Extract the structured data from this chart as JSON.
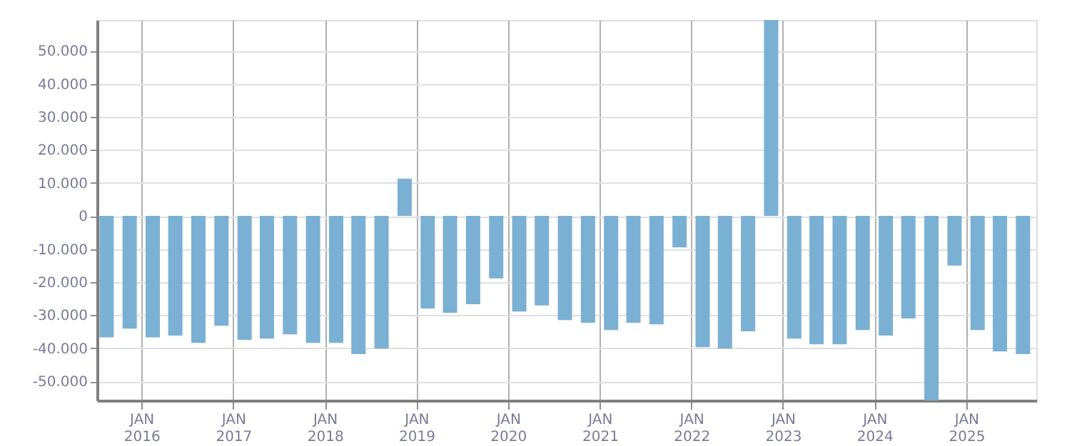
{
  "chart_data": {
    "type": "bar",
    "x": [
      "2015-08-15",
      "2015-11-15",
      "2016-02-15",
      "2016-05-15",
      "2016-08-15",
      "2016-11-15",
      "2017-02-15",
      "2017-05-15",
      "2017-08-15",
      "2017-11-15",
      "2018-02-15",
      "2018-05-15",
      "2018-08-15",
      "2018-11-15",
      "2019-02-15",
      "2019-05-15",
      "2019-08-15",
      "2019-11-15",
      "2020-02-15",
      "2020-05-15",
      "2020-08-15",
      "2020-11-15",
      "2021-02-15",
      "2021-05-15",
      "2021-08-15",
      "2021-11-15",
      "2022-02-15",
      "2022-05-15",
      "2022-08-15",
      "2022-11-15",
      "2023-02-15",
      "2023-05-15",
      "2023-08-15",
      "2023-11-15",
      "2024-02-15",
      "2024-05-15",
      "2024-08-15",
      "2024-11-15",
      "2025-02-15",
      "2025-05-15",
      "2025-08-15"
    ],
    "series": [
      {
        "color": "#7ab0d3",
        "values": [
          -36700,
          -34100,
          -36700,
          -36200,
          -38400,
          -33200,
          -37500,
          -37100,
          -35800,
          -38400,
          -38400,
          -41800,
          -40100,
          11300,
          -28000,
          -29300,
          -26700,
          -18900,
          -28900,
          -27100,
          -31500,
          -32300,
          -34500,
          -32300,
          -32800,
          -9500,
          -39700,
          -40100,
          -34900,
          59300,
          -37100,
          -38800,
          -38800,
          -34500,
          -36200,
          -31000,
          -55800,
          -15000,
          -34500,
          -41000,
          -41800
        ]
      }
    ],
    "xlim": [
      "2015-07-08",
      "2025-10-07"
    ],
    "xticks": [
      {
        "value": "2016-01-01",
        "label": "JAN 2016"
      },
      {
        "value": "2017-01-01",
        "label": "JAN 2017"
      },
      {
        "value": "2018-01-01",
        "label": "JAN 2018"
      },
      {
        "value": "2019-01-01",
        "label": "JAN 2019"
      },
      {
        "value": "2020-01-01",
        "label": "JAN 2020"
      },
      {
        "value": "2021-01-01",
        "label": "JAN 2021"
      },
      {
        "value": "2022-01-01",
        "label": "JAN 2022"
      },
      {
        "value": "2023-01-01",
        "label": "JAN 2023"
      },
      {
        "value": "2024-01-01",
        "label": "JAN 2024"
      },
      {
        "value": "2025-01-01",
        "label": "JAN 2025"
      }
    ],
    "ylim": [
      -55800,
      59300
    ],
    "yticks": [
      {
        "value": -50000,
        "label": "-50.000"
      },
      {
        "value": -40000,
        "label": "-40.000"
      },
      {
        "value": -30000,
        "label": "-30.000"
      },
      {
        "value": -20000,
        "label": "-20.000"
      },
      {
        "value": -10000,
        "label": "-10.000"
      },
      {
        "value": 0,
        "label": "0"
      },
      {
        "value": 10000,
        "label": "10.000"
      },
      {
        "value": 20000,
        "label": "20.000"
      },
      {
        "value": 30000,
        "label": "30.000"
      },
      {
        "value": 40000,
        "label": "40.000"
      },
      {
        "value": 50000,
        "label": "50.000"
      }
    ],
    "grid": true,
    "legend": false
  }
}
